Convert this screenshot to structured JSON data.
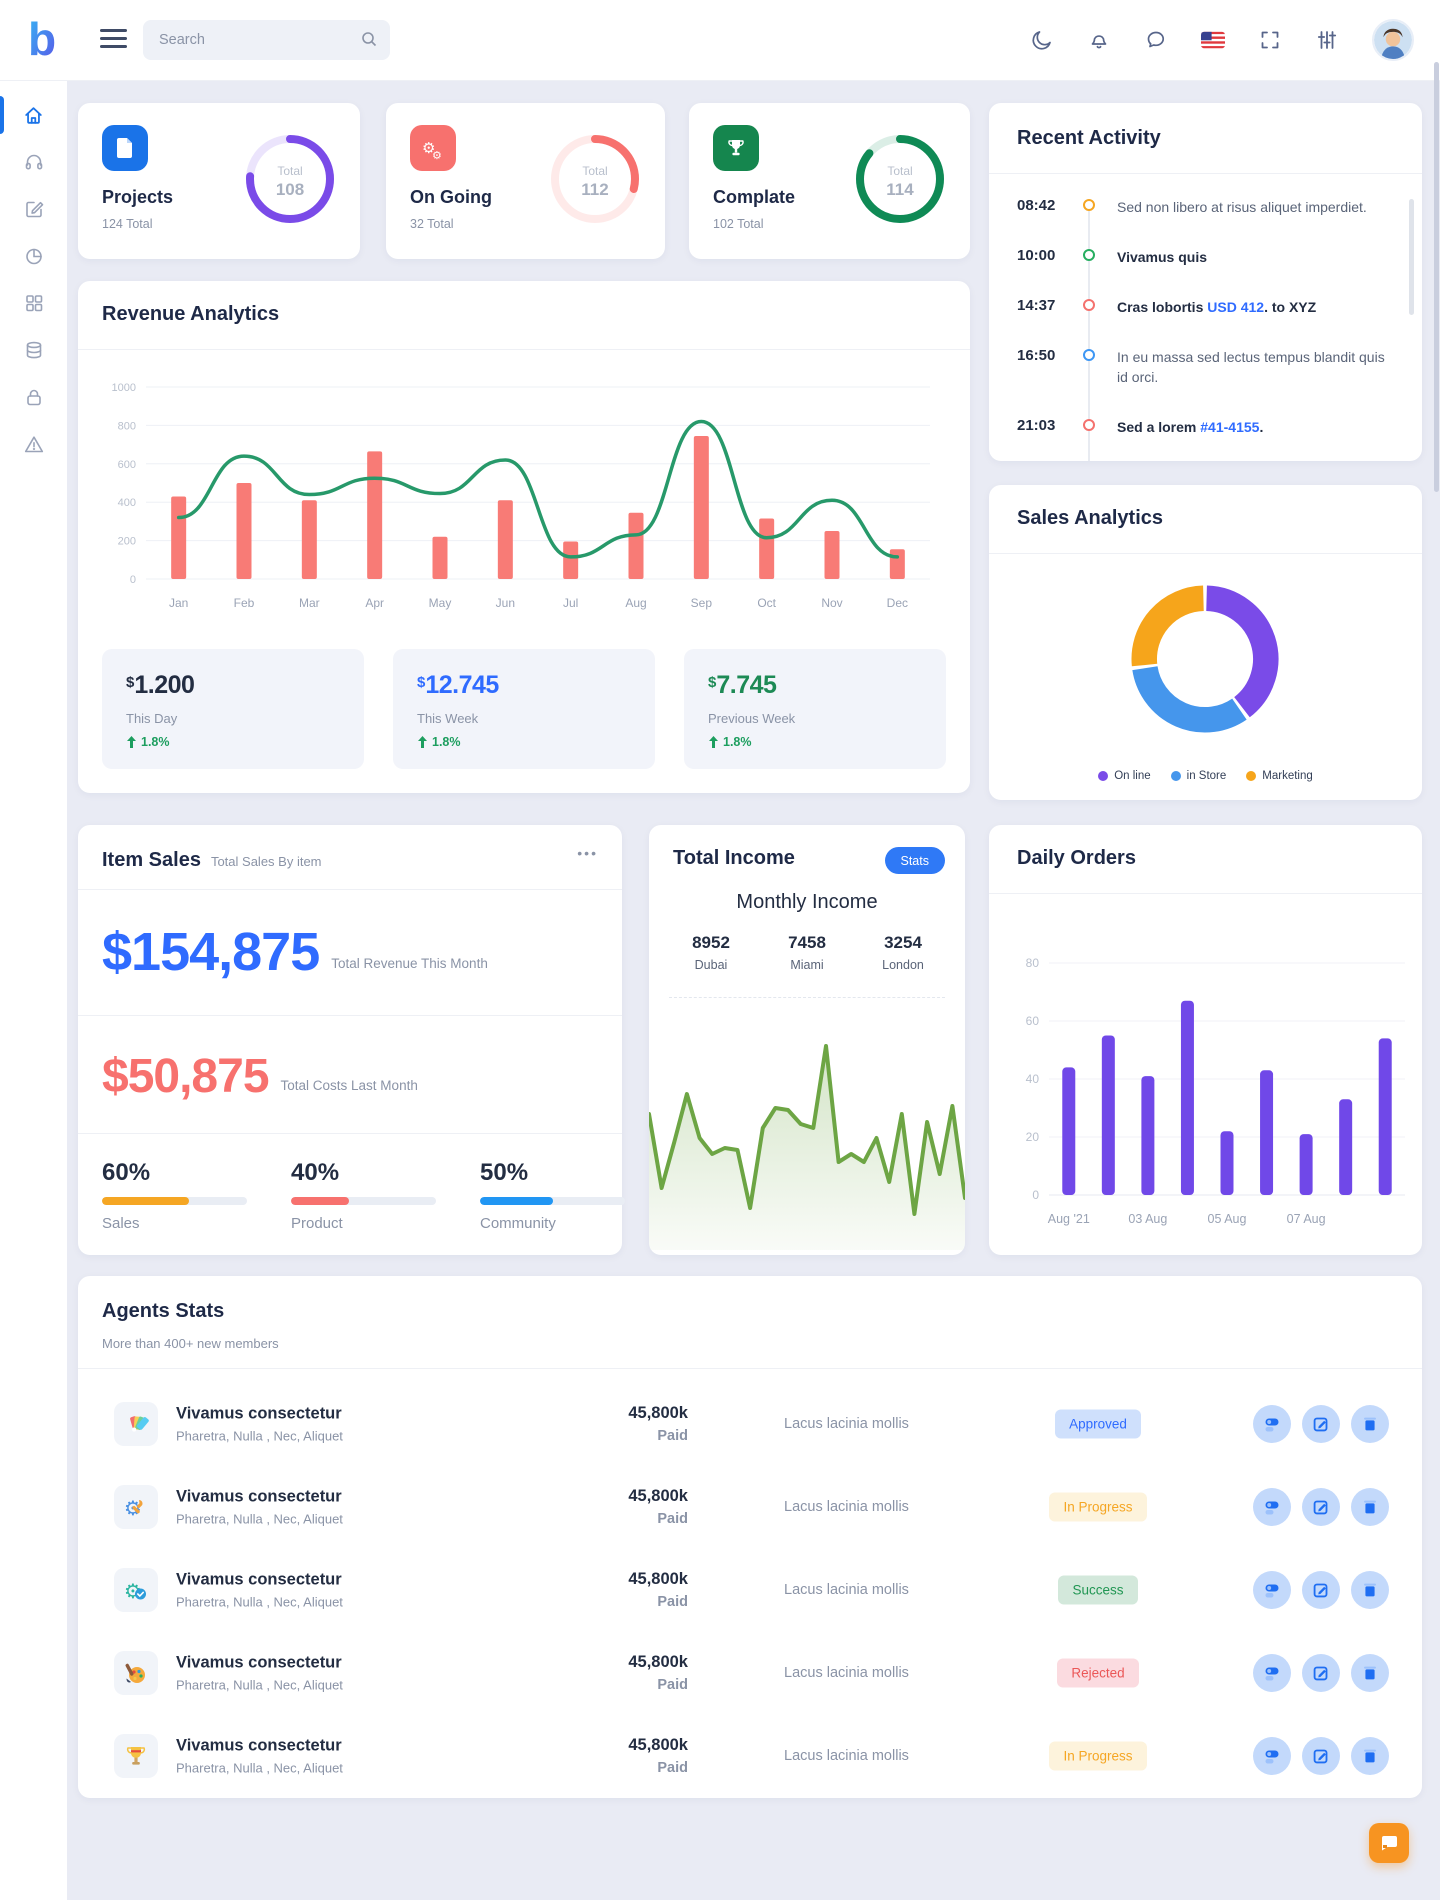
{
  "topbar": {
    "search_placeholder": "Search",
    "icons": [
      "menu",
      "dark-mode-moon",
      "notifications-bell",
      "messages-chat",
      "language-us-flag",
      "fullscreen",
      "preferences-sliders",
      "user-avatar"
    ]
  },
  "sidebar": {
    "items": [
      {
        "name": "dashboard-home",
        "active": true
      },
      {
        "name": "support-headphones",
        "active": false
      },
      {
        "name": "compose-edit",
        "active": false
      },
      {
        "name": "reports-pie",
        "active": false
      },
      {
        "name": "apps-grid",
        "active": false
      },
      {
        "name": "database",
        "active": false
      },
      {
        "name": "security-lock",
        "active": false
      },
      {
        "name": "alerts-warning",
        "active": false
      }
    ]
  },
  "stat_cards": [
    {
      "title": "Projects",
      "subtitle": "124 Total",
      "ring_label": "Total",
      "ring_value": "108",
      "ring_pct": 76,
      "tile_color": "#1a73e8",
      "ring_color": "#7a4be8",
      "icon": "document-icon"
    },
    {
      "title": "On Going",
      "subtitle": "32 Total",
      "ring_label": "Total",
      "ring_value": "112",
      "ring_pct": 29,
      "tile_color": "#f7716e",
      "ring_color": "#f7716e",
      "icon": "gears-icon"
    },
    {
      "title": "Complate",
      "subtitle": "102 Total",
      "ring_label": "Total",
      "ring_value": "114",
      "ring_pct": 86,
      "tile_color": "#15864e",
      "ring_color": "#0f8a55",
      "icon": "trophy-icon"
    }
  ],
  "recent_activity": {
    "title": "Recent Activity",
    "items": [
      {
        "time": "08:42",
        "dot_color": "#f5a623",
        "pre": "Sed non libero at risus aliquet imperdiet.",
        "link": "",
        "post": ""
      },
      {
        "time": "10:00",
        "dot_color": "#27ae60",
        "pre": "Vivamus quis",
        "link": "",
        "post": ""
      },
      {
        "time": "14:37",
        "dot_color": "#f4726e",
        "pre": "Cras lobortis ",
        "link": "USD 412",
        "post": ". to XYZ"
      },
      {
        "time": "16:50",
        "dot_color": "#3e97f4",
        "pre": "In eu massa sed lectus tempus blandit quis id orci.",
        "link": "",
        "post": ""
      },
      {
        "time": "21:03",
        "dot_color": "#f4726e",
        "pre": "Sed a lorem ",
        "link": "#41-4155",
        "post": "."
      }
    ]
  },
  "revenue": {
    "title": "Revenue Analytics",
    "summary": [
      {
        "currency": "$",
        "value": "1.200",
        "label": "This Day",
        "change": "1.8%",
        "value_color": "#232d42"
      },
      {
        "currency": "$",
        "value": "12.745",
        "label": "This Week",
        "change": "1.8%",
        "value_color": "#2f6bff"
      },
      {
        "currency": "$",
        "value": "7.745",
        "label": "Previous Week",
        "change": "1.8%",
        "value_color": "#1d8a55"
      }
    ]
  },
  "sales_analytics": {
    "title": "Sales Analytics"
  },
  "item_sales": {
    "title": "Item Sales",
    "subtitle": "Total Sales By item",
    "menu": "•••",
    "revenue_value": "$154,875",
    "revenue_label": "Total Revenue This Month",
    "costs_value": "$50,875",
    "costs_label": "Total Costs Last Month",
    "progress": [
      {
        "pct": "60%",
        "value": 60,
        "color": "#f5a623",
        "label": "Sales"
      },
      {
        "pct": "40%",
        "value": 40,
        "color": "#f7716e",
        "label": "Product"
      },
      {
        "pct": "50%",
        "value": 50,
        "color": "#2196f3",
        "label": "Community"
      }
    ]
  },
  "total_income": {
    "title": "Total Income",
    "badge": "Stats",
    "subtitle": "Monthly Income",
    "cities": [
      {
        "value": "8952",
        "label": "Dubai"
      },
      {
        "value": "7458",
        "label": "Miami"
      },
      {
        "value": "3254",
        "label": "London"
      }
    ]
  },
  "daily_orders": {
    "title": "Daily Orders"
  },
  "agents": {
    "title": "Agents Stats",
    "subtitle": "More than 400+ new members",
    "rows": [
      {
        "name": "Vivamus consectetur",
        "sub": "Pharetra, Nulla , Nec, Aliquet",
        "amount": "45,800k",
        "amount_sub": "Paid",
        "desc": "Lacus lacinia mollis",
        "status": "Approved",
        "status_type": "approved",
        "icon": "swatches-icon"
      },
      {
        "name": "Vivamus consectetur",
        "sub": "Pharetra, Nulla , Nec, Aliquet",
        "amount": "45,800k",
        "amount_sub": "Paid",
        "desc": "Lacus lacinia mollis",
        "status": "In Progress",
        "status_type": "inprogress",
        "icon": "gear-wrench-icon"
      },
      {
        "name": "Vivamus consectetur",
        "sub": "Pharetra, Nulla , Nec, Aliquet",
        "amount": "45,800k",
        "amount_sub": "Paid",
        "desc": "Lacus lacinia mollis",
        "status": "Success",
        "status_type": "success",
        "icon": "gear-check-icon"
      },
      {
        "name": "Vivamus consectetur",
        "sub": "Pharetra, Nulla , Nec, Aliquet",
        "amount": "45,800k",
        "amount_sub": "Paid",
        "desc": "Lacus lacinia mollis",
        "status": "Rejected",
        "status_type": "rejected",
        "icon": "palette-icon"
      },
      {
        "name": "Vivamus consectetur",
        "sub": "Pharetra, Nulla , Nec, Aliquet",
        "amount": "45,800k",
        "amount_sub": "Paid",
        "desc": "Lacus lacinia mollis",
        "status": "In Progress",
        "status_type": "inprogress",
        "icon": "trophy-gold-icon"
      }
    ]
  },
  "chart_data": [
    {
      "id": "revenue-analytics",
      "type": "bar",
      "title": "Revenue Analytics",
      "categories": [
        "Jan",
        "Feb",
        "Mar",
        "Apr",
        "May",
        "Jun",
        "Jul",
        "Aug",
        "Sep",
        "Oct",
        "Nov",
        "Dec"
      ],
      "series": [
        {
          "name": "Revenue",
          "type": "bar",
          "color": "#f87b76",
          "values": [
            430,
            500,
            410,
            665,
            220,
            410,
            195,
            345,
            745,
            315,
            250,
            155
          ]
        },
        {
          "name": "Trend",
          "type": "line",
          "color": "#27996a",
          "values": [
            320,
            640,
            440,
            525,
            445,
            620,
            115,
            230,
            820,
            215,
            410,
            115
          ]
        }
      ],
      "ylim": [
        0,
        1000
      ],
      "yticks": [
        0,
        200,
        400,
        600,
        800,
        1000
      ],
      "grid": true,
      "legend_position": "none"
    },
    {
      "id": "sales-analytics",
      "type": "pie",
      "donut": true,
      "title": "Sales Analytics",
      "labels": [
        "On line",
        "in Store",
        "Marketing"
      ],
      "values": [
        40,
        33,
        27
      ],
      "colors": [
        "#7a4be8",
        "#4596ec",
        "#f6a51b"
      ],
      "legend_position": "bottom"
    },
    {
      "id": "monthly-income",
      "type": "area",
      "title": "Monthly Income",
      "color": "#6da544",
      "values": [
        62,
        25,
        48,
        72,
        50,
        42,
        45,
        44,
        15,
        55,
        65,
        64,
        57,
        55,
        96,
        38,
        42,
        38,
        50,
        28,
        62,
        12,
        58,
        32,
        66,
        20
      ],
      "ylim": [
        0,
        100
      ],
      "grid": false
    },
    {
      "id": "daily-orders",
      "type": "bar",
      "title": "Daily Orders",
      "color": "#7048e8",
      "values": [
        44,
        55,
        41,
        67,
        22,
        43,
        21,
        33,
        54
      ],
      "xticks": [
        {
          "index": 0,
          "label": "Aug '21"
        },
        {
          "index": 2,
          "label": "03 Aug"
        },
        {
          "index": 4,
          "label": "05 Aug"
        },
        {
          "index": 6,
          "label": "07 Aug"
        }
      ],
      "ylim": [
        0,
        80
      ],
      "yticks": [
        0,
        20,
        40,
        60,
        80
      ],
      "grid": true,
      "legend_position": "none"
    }
  ]
}
